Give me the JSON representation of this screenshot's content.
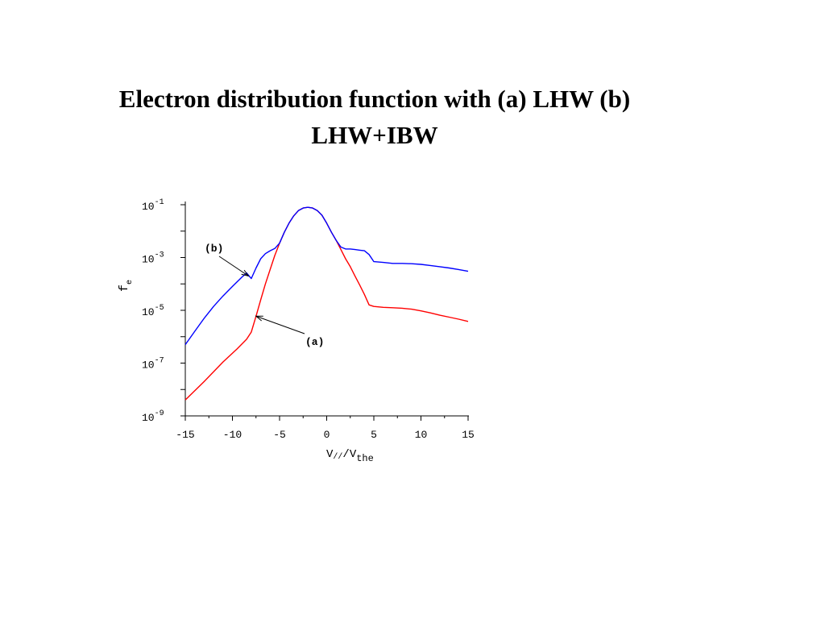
{
  "slide": {
    "title_line1": "Electron distribution function with (a) LHW (b)",
    "title_line2": "LHW+IBW"
  },
  "chart_data": {
    "type": "line",
    "title": "",
    "xlabel": {
      "base": "V",
      "sub1": "//",
      "mid": "/V",
      "sub2": "the"
    },
    "ylabel": {
      "base": "f",
      "sub": "e"
    },
    "xlim": [
      -15,
      15
    ],
    "ylim": [
      1e-09,
      0.1
    ],
    "yscale": "log",
    "xticks": [
      {
        "value": -15,
        "label": "-15"
      },
      {
        "value": -10,
        "label": "-10"
      },
      {
        "value": -5,
        "label": "-5"
      },
      {
        "value": 0,
        "label": "0"
      },
      {
        "value": 5,
        "label": "5"
      },
      {
        "value": 10,
        "label": "10"
      },
      {
        "value": 15,
        "label": "15"
      }
    ],
    "yticks": [
      {
        "value": 0.1,
        "base": "10",
        "exp": "-1"
      },
      {
        "value": 0.001,
        "base": "10",
        "exp": "-3"
      },
      {
        "value": 1e-05,
        "base": "10",
        "exp": "-5"
      },
      {
        "value": 1e-07,
        "base": "10",
        "exp": "-7"
      },
      {
        "value": 1e-09,
        "base": "10",
        "exp": "-9"
      }
    ],
    "grid": false,
    "legend": "none",
    "series": [
      {
        "color": "#ff0000",
        "x": [
          -15,
          -13,
          -11,
          -9.5,
          -8.5,
          -8,
          -7.5,
          -7,
          -6.5,
          -6,
          -5.5,
          -5,
          -4.5,
          -4,
          -3.5,
          -3,
          -2.5,
          -2,
          -1.5,
          -1,
          -0.5,
          0,
          0.5,
          1,
          1.5,
          2,
          2.5,
          3,
          3.5,
          4,
          4.5,
          5,
          6,
          7,
          8,
          9,
          10,
          11,
          12,
          13,
          14,
          15
        ],
        "y": [
          4e-09,
          2e-08,
          1.1e-07,
          3.5e-07,
          8e-07,
          1.5e-06,
          6e-06,
          2.5e-05,
          0.0001,
          0.00035,
          0.0012,
          0.0035,
          0.009,
          0.02,
          0.038,
          0.06,
          0.075,
          0.08,
          0.075,
          0.06,
          0.04,
          0.02,
          0.009,
          0.0045,
          0.002,
          0.0009,
          0.00045,
          0.0002,
          9e-05,
          4e-05,
          1.6e-05,
          1.4e-05,
          1.3e-05,
          1.25e-05,
          1.2e-05,
          1.1e-05,
          9.5e-06,
          8e-06,
          6.5e-06,
          5.5e-06,
          4.6e-06,
          3.8e-06
        ]
      },
      {
        "color": "#0000ff",
        "x": [
          -15,
          -14,
          -13,
          -12,
          -11,
          -10,
          -9,
          -8.5,
          -8,
          -7.5,
          -7,
          -6.5,
          -6,
          -5.5,
          -5,
          -4.5,
          -4,
          -3.5,
          -3,
          -2.5,
          -2,
          -1.5,
          -1,
          -0.5,
          0,
          0.5,
          1,
          1.5,
          2,
          2.5,
          3,
          3.5,
          4,
          4.5,
          5,
          6,
          7,
          8,
          9,
          10,
          11,
          12,
          13,
          14,
          15
        ],
        "y": [
          5e-07,
          1.6e-06,
          5e-06,
          1.4e-05,
          3.5e-05,
          8e-05,
          0.00018,
          0.00026,
          0.00016,
          0.0004,
          0.0009,
          0.0014,
          0.0018,
          0.0022,
          0.0035,
          0.009,
          0.02,
          0.038,
          0.06,
          0.075,
          0.08,
          0.075,
          0.06,
          0.04,
          0.02,
          0.009,
          0.0045,
          0.0025,
          0.0021,
          0.0021,
          0.002,
          0.0019,
          0.0018,
          0.0013,
          0.0007,
          0.00065,
          0.0006,
          0.0006,
          0.00058,
          0.00055,
          0.0005,
          0.00045,
          0.0004,
          0.00035,
          0.0003
        ]
      }
    ],
    "annotations": [
      {
        "label": "(a)",
        "arrow_to": {
          "x": -7.5,
          "y": 6e-06
        }
      },
      {
        "label": "(b)",
        "arrow_to": {
          "x": -8.3,
          "y": 0.0002
        }
      }
    ]
  }
}
